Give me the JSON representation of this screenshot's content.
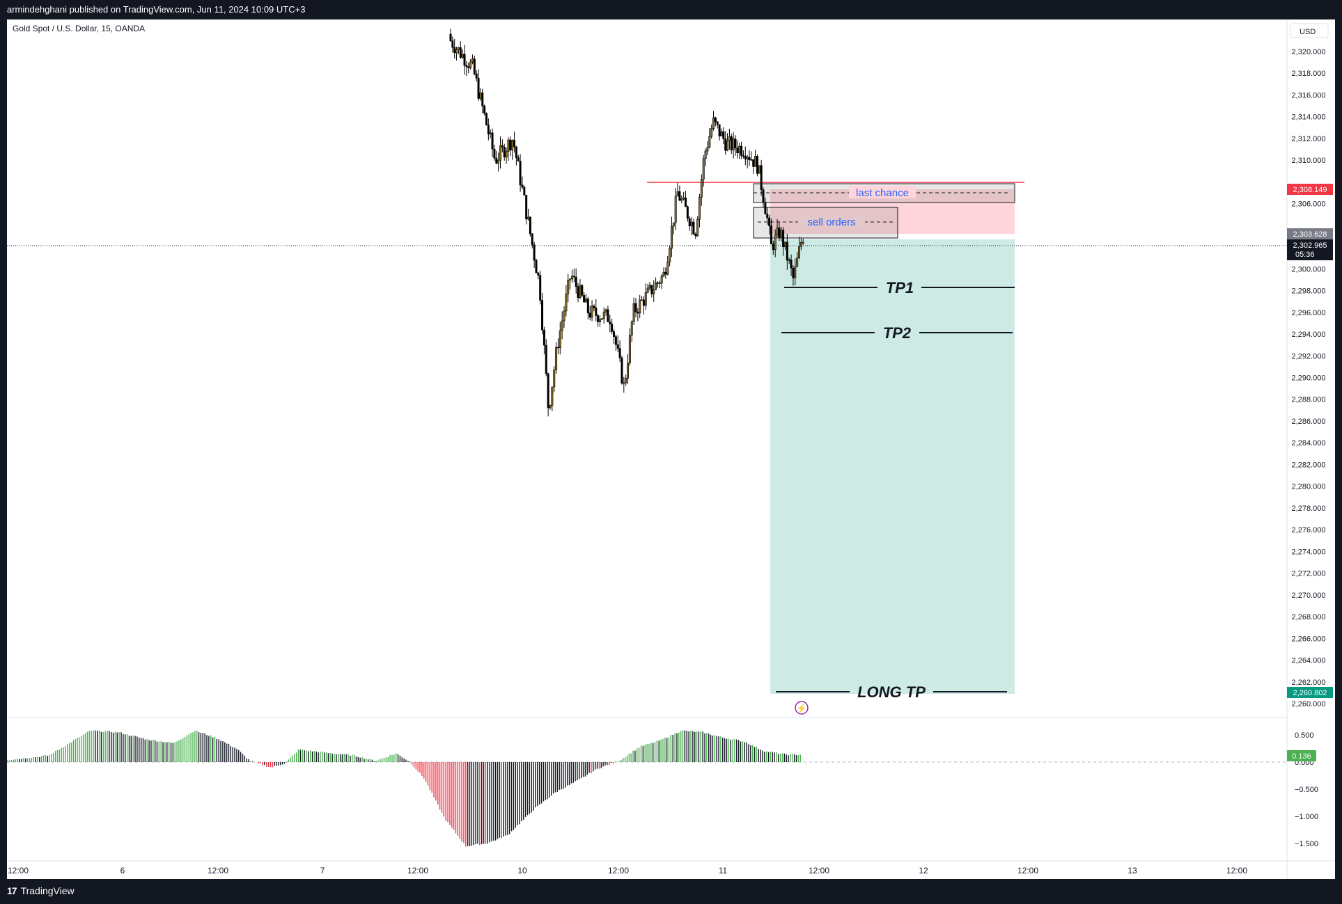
{
  "header": {
    "published": "armindehghani published on TradingView.com, Jun 11, 2024 10:09 UTC+3"
  },
  "chart": {
    "symbol": "Gold Spot / U.S. Dollar, 15, OANDA",
    "currency": "USD",
    "current_price": "2,302.965",
    "countdown": "05:36",
    "label_red": "2,308.149",
    "label_gray": "2,303.628",
    "label_target": "2,260.802",
    "indicator_value": "0.136"
  },
  "annotations": {
    "last_chance": "last chance",
    "sell_orders": "sell orders",
    "tp1": "TP1",
    "tp2": "TP2",
    "long_tp": "LONG TP"
  },
  "footer": {
    "logo_text": "TradingView"
  },
  "colors": {
    "bull": "#8a6d1e",
    "bear": "#000000",
    "stop_zone": "#fdd5da",
    "target_zone": "#cdeae4",
    "resistance": "#f23645",
    "annotation_text": "#2962ff",
    "osc_green": "#4caf50",
    "osc_red": "#f23645",
    "osc_dark": "#131722"
  },
  "chart_data": {
    "type": "candlestick",
    "title": "Gold Spot / U.S. Dollar, 15, OANDA",
    "y_ticks": [
      2320,
      2318,
      2316,
      2314,
      2312,
      2310,
      2306,
      2300,
      2298,
      2296,
      2294,
      2292,
      2290,
      2288,
      2286,
      2284,
      2282,
      2280,
      2278,
      2276,
      2274,
      2272,
      2270,
      2268,
      2266,
      2264,
      2262,
      2260
    ],
    "ylim": [
      2258.5,
      2322.5
    ],
    "x_labels": [
      "12:00",
      "6",
      "12:00",
      "7",
      "12:00",
      "10",
      "12:00",
      "11",
      "12:00",
      "12",
      "12:00",
      "13",
      "12:00"
    ],
    "price_path": [
      [
        0,
        2321.0
      ],
      [
        0.25,
        2318.5
      ],
      [
        0.5,
        2310.0
      ],
      [
        0.7,
        2312.0
      ],
      [
        0.9,
        2303.0
      ],
      [
        1.0,
        2298.5
      ],
      [
        1.1,
        2287.0
      ],
      [
        1.2,
        2293.0
      ],
      [
        1.35,
        2299.5
      ],
      [
        1.55,
        2296.0
      ],
      [
        1.8,
        2295.5
      ],
      [
        1.95,
        2289.0
      ],
      [
        2.05,
        2296.0
      ],
      [
        2.2,
        2297.5
      ],
      [
        2.4,
        2299.5
      ],
      [
        2.55,
        2307.0
      ],
      [
        2.75,
        2303.5
      ],
      [
        2.85,
        2310.5
      ],
      [
        2.95,
        2313.5
      ],
      [
        3.1,
        2311.5
      ],
      [
        3.3,
        2311.0
      ],
      [
        3.45,
        2309.5
      ],
      [
        3.55,
        2305.0
      ],
      [
        3.6,
        2302.0
      ],
      [
        3.7,
        2303.5
      ],
      [
        3.85,
        2299.0
      ],
      [
        3.95,
        2303.0
      ]
    ],
    "resistance": 2308.9,
    "stop_top": 2308.149,
    "entry": 2303.628,
    "last_price": 2302.965,
    "tp1": 2299.0,
    "tp2": 2294.7,
    "long_tp": 2260.802,
    "boxes": [
      {
        "label": "last chance",
        "from": 2309.0,
        "to": 2307.2
      },
      {
        "label": "sell orders",
        "from": 2306.6,
        "to": 2303.6
      }
    ],
    "oscillator": {
      "y_ticks": [
        0.5,
        0.0,
        -0.5,
        -1.0,
        -1.5
      ],
      "y_tick_labels": [
        "0.500",
        "0.000",
        "−0.500",
        "−1.000",
        "−1.500"
      ],
      "ylim": [
        -1.6,
        0.75
      ],
      "last_value": 0.136,
      "path": [
        [
          0,
          0.04
        ],
        [
          0.3,
          0.12
        ],
        [
          0.45,
          0.35
        ],
        [
          0.6,
          0.58
        ],
        [
          0.8,
          0.55
        ],
        [
          1.0,
          0.42
        ],
        [
          1.2,
          0.35
        ],
        [
          1.35,
          0.58
        ],
        [
          1.5,
          0.45
        ],
        [
          1.65,
          0.25
        ],
        [
          1.75,
          0.02
        ],
        [
          1.9,
          -0.1
        ],
        [
          2.0,
          -0.02
        ],
        [
          2.1,
          0.23
        ],
        [
          2.3,
          0.17
        ],
        [
          2.5,
          0.12
        ],
        [
          2.65,
          0.02
        ],
        [
          2.8,
          0.16
        ],
        [
          2.9,
          0.0
        ],
        [
          3.0,
          -0.3
        ],
        [
          3.15,
          -1.05
        ],
        [
          3.3,
          -1.55
        ],
        [
          3.45,
          -1.5
        ],
        [
          3.6,
          -1.35
        ],
        [
          3.8,
          -0.85
        ],
        [
          3.95,
          -0.55
        ],
        [
          4.1,
          -0.35
        ],
        [
          4.25,
          -0.12
        ],
        [
          4.4,
          0.02
        ],
        [
          4.55,
          0.28
        ],
        [
          4.7,
          0.4
        ],
        [
          4.85,
          0.58
        ],
        [
          5.0,
          0.55
        ],
        [
          5.15,
          0.45
        ],
        [
          5.3,
          0.38
        ],
        [
          5.45,
          0.2
        ],
        [
          5.6,
          0.14
        ],
        [
          5.72,
          0.136
        ]
      ]
    }
  }
}
